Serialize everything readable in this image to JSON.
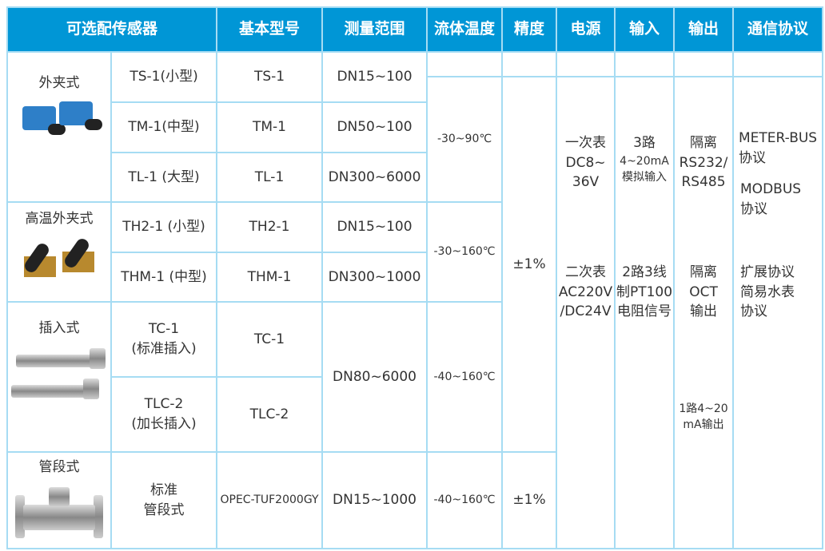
{
  "header": [
    "可选配传感器",
    "基本型号",
    "测量范围",
    "流体温度",
    "精度",
    "电源",
    "输入",
    "输出",
    "通信协议"
  ],
  "categories": [
    {
      "label": "外夹式",
      "image": "clamp-on-sensors"
    },
    {
      "label": "高温外夹式",
      "image": "high-temp-clamp-sensors"
    },
    {
      "label": "插入式",
      "image": "insertion-sensors"
    },
    {
      "label": "管段式",
      "image": "spool-piece-sensor"
    }
  ],
  "rows": [
    {
      "sensor": "TS-1(小型)",
      "model": "TS-1",
      "range": "DN15~100"
    },
    {
      "sensor": "TM-1(中型)",
      "model": "TM-1",
      "range": "DN50~100"
    },
    {
      "sensor": "TL-1 (大型)",
      "model": "TL-1",
      "range": "DN300~6000"
    },
    {
      "sensor": "TH2-1 (小型)",
      "model": "TH2-1",
      "range": "DN15~100"
    },
    {
      "sensor": "THM-1 (中型)",
      "model": "THM-1",
      "range": "DN300~1000"
    },
    {
      "sensor": "TC-1",
      "sensor2": "(标准插入)",
      "model": "TC-1",
      "range": "DN80~6000"
    },
    {
      "sensor": "TLC-2",
      "sensor2": "(加长插入)",
      "model": "TLC-2"
    },
    {
      "sensor": "标准",
      "sensor2": "管段式",
      "model": "OPEC-TUF2000GY",
      "range": "DN15~1000"
    }
  ],
  "temperature": [
    "-30~90℃",
    "-30~160℃",
    "-40~160℃",
    "-40~160℃"
  ],
  "accuracy": [
    "±1%",
    "±1%"
  ],
  "power": {
    "a": [
      "一次表",
      "DC8~",
      "36V"
    ],
    "b": [
      "二次表",
      "AC220V",
      "/DC24V"
    ]
  },
  "input": {
    "a": [
      "3路",
      "4~20mA",
      "模拟输入"
    ],
    "b": [
      "2路3线",
      "制PT100",
      "电阻信号"
    ]
  },
  "output": {
    "a": [
      "隔离",
      "RS232/",
      "RS485"
    ],
    "b": [
      "隔离",
      "OCT",
      "输出"
    ],
    "c": [
      "1路4~20",
      "mA输出"
    ]
  },
  "protocol": {
    "a": [
      "METER-BUS",
      "协议"
    ],
    "b": [
      "MODBUS",
      "协议"
    ],
    "c": [
      "扩展协议"
    ],
    "d": [
      "简易水表",
      "协议"
    ]
  },
  "colors": {
    "header_bg": "#0096d6",
    "border": "#a6dcf3"
  }
}
